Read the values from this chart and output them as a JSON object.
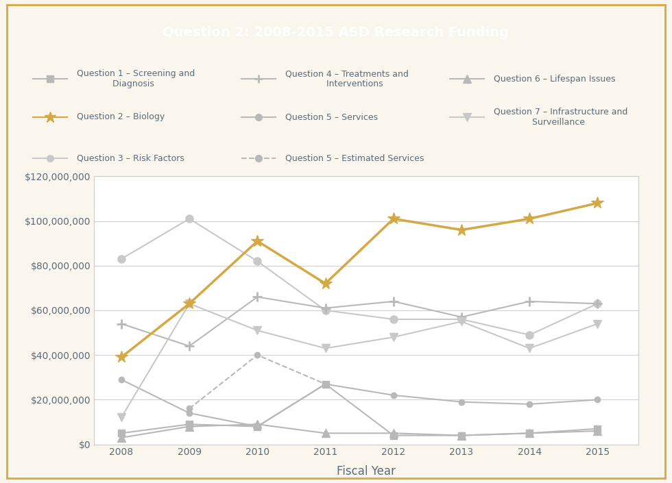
{
  "title": "Question 2: 2008-2015 ASD Research Funding",
  "title_bg": "#D4A843",
  "xlabel": "Fiscal Year",
  "years": [
    2008,
    2009,
    2010,
    2011,
    2012,
    2013,
    2014,
    2015
  ],
  "series": {
    "Q1_Screening": [
      5000000,
      9000000,
      8000000,
      27000000,
      4000000,
      4000000,
      5000000,
      7000000
    ],
    "Q2_Biology": [
      39000000,
      63000000,
      91000000,
      72000000,
      101000000,
      96000000,
      101000000,
      108000000
    ],
    "Q3_RiskFactors": [
      83000000,
      101000000,
      82000000,
      60000000,
      56000000,
      56000000,
      49000000,
      63000000
    ],
    "Q4_Treatments": [
      54000000,
      44000000,
      66000000,
      61000000,
      64000000,
      57000000,
      64000000,
      63000000
    ],
    "Q5_Services": [
      29000000,
      14000000,
      8000000,
      27000000,
      22000000,
      19000000,
      18000000,
      20000000
    ],
    "Q5_EstServices": [
      null,
      16000000,
      40000000,
      27000000,
      null,
      null,
      null,
      null
    ],
    "Q6_Lifespan": [
      3000000,
      8000000,
      9000000,
      5000000,
      5000000,
      4000000,
      5000000,
      6000000
    ],
    "Q7_Infra": [
      12000000,
      63000000,
      51000000,
      43000000,
      48000000,
      55000000,
      43000000,
      54000000
    ]
  },
  "gray_light": "#c8c8c8",
  "gray_mid": "#b8b8b8",
  "gold": "#D4A843",
  "ylim": [
    0,
    120000000
  ],
  "yticks": [
    0,
    20000000,
    40000000,
    60000000,
    80000000,
    100000000,
    120000000
  ],
  "fig_bg": "#faf6ee",
  "plot_bg": "#ffffff",
  "border_color": "#D4A843",
  "text_color": "#5a6b7a"
}
